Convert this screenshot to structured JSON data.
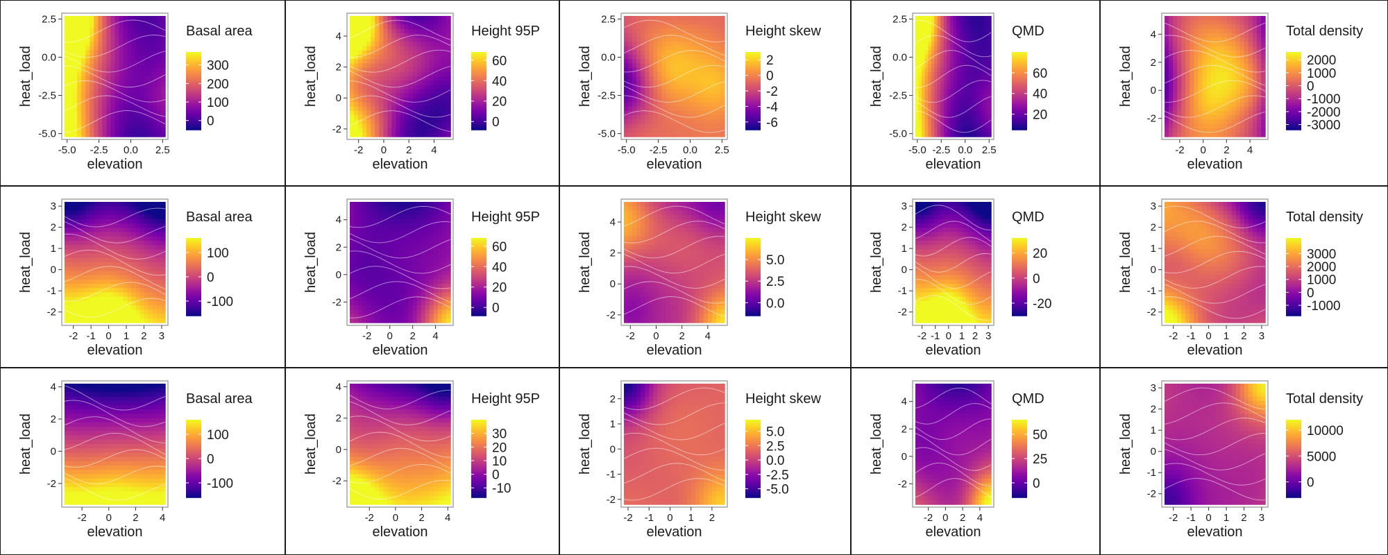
{
  "colors": {
    "colormap": "plasma",
    "contour_line": "#ffffff",
    "plot_frame": "#9e9e9e",
    "panel_border": "#1a1a1a"
  },
  "chart_data": [
    {
      "type": "heatmap",
      "row": 1,
      "col": 1,
      "legend_title": "Basal area",
      "xlabel": "elevation",
      "ylabel": "heat_load",
      "xlim": [
        -5.2,
        2.7
      ],
      "ylim": [
        -5.2,
        2.7
      ],
      "xticks": [
        "-5.0",
        "-2.5",
        "0.0",
        "2.5"
      ],
      "xtick_values": [
        -5,
        -2.5,
        0,
        2.5
      ],
      "yticks": [
        "-5.0",
        "-2.5",
        "0.0",
        "2.5"
      ],
      "ytick_values": [
        -5,
        -2.5,
        0,
        2.5
      ],
      "legend_ticks": [
        "300",
        "200",
        "100",
        "0"
      ],
      "legend_tick_values": [
        300,
        200,
        100,
        0
      ],
      "value_range": [
        -50,
        370
      ],
      "surface": {
        "center": 0.3,
        "gx": -0.6,
        "gy": 0.05,
        "curv": 0.45,
        "wavy": 0.1,
        "hot": [
          [
            -1,
            1,
            0.6
          ],
          [
            1,
            -0.4,
            0.25
          ]
        ]
      }
    },
    {
      "type": "heatmap",
      "row": 1,
      "col": 2,
      "legend_title": "Height 95P",
      "xlabel": "elevation",
      "ylabel": "heat_load",
      "xlim": [
        -2.7,
        5.3
      ],
      "ylim": [
        -2.5,
        5.3
      ],
      "xticks": [
        "-2",
        "0",
        "2",
        "4"
      ],
      "xtick_values": [
        -2,
        0,
        2,
        4
      ],
      "yticks": [
        "-2",
        "0",
        "2",
        "4"
      ],
      "ytick_values": [
        -2,
        0,
        2,
        4
      ],
      "legend_ticks": [
        "60",
        "40",
        "20",
        "0"
      ],
      "legend_tick_values": [
        60,
        40,
        20,
        0
      ],
      "value_range": [
        -8,
        68
      ],
      "surface": {
        "center": 0.28,
        "gx": -0.35,
        "gy": 0.05,
        "curv": 0.35,
        "wavy": 0.35,
        "hot": [
          [
            -1,
            1,
            0.55
          ],
          [
            -0.6,
            -0.7,
            0.2
          ]
        ]
      }
    },
    {
      "type": "heatmap",
      "row": 1,
      "col": 3,
      "legend_title": "Height skew",
      "xlabel": "elevation",
      "ylabel": "heat_load",
      "xlim": [
        -5.2,
        2.7
      ],
      "ylim": [
        -5.2,
        2.7
      ],
      "xticks": [
        "-5.0",
        "-2.5",
        "0.0",
        "2.5"
      ],
      "xtick_values": [
        -5,
        -2.5,
        0,
        2.5
      ],
      "yticks": [
        "-5.0",
        "-2.5",
        "0.0",
        "2.5"
      ],
      "ytick_values": [
        -5,
        -2.5,
        0,
        2.5
      ],
      "legend_ticks": [
        "2",
        "0",
        "-2",
        "-4",
        "-6"
      ],
      "legend_tick_values": [
        2,
        0,
        -2,
        -4,
        -6
      ],
      "value_range": [
        -7,
        3
      ],
      "surface": {
        "center": 0.66,
        "gx": 0.05,
        "gy": 0,
        "curv": -0.1,
        "wavy": 0.12,
        "hot": [
          [
            0.95,
            -0.2,
            0.25
          ],
          [
            -0.2,
            0.1,
            0.15
          ],
          [
            -1,
            -0.1,
            -0.3
          ]
        ]
      }
    },
    {
      "type": "heatmap",
      "row": 1,
      "col": 4,
      "legend_title": "QMD",
      "xlabel": "elevation",
      "ylabel": "heat_load",
      "xlim": [
        -5.2,
        2.7
      ],
      "ylim": [
        -5.2,
        2.7
      ],
      "xticks": [
        "-5.0",
        "-2.5",
        "0.0",
        "2.5"
      ],
      "xtick_values": [
        -5,
        -2.5,
        0,
        2.5
      ],
      "yticks": [
        "-5.0",
        "-2.5",
        "0.0",
        "2.5"
      ],
      "ytick_values": [
        -5,
        -2.5,
        0,
        2.5
      ],
      "legend_ticks": [
        "60",
        "40",
        "20"
      ],
      "legend_tick_values": [
        60,
        40,
        20
      ],
      "value_range": [
        5,
        80
      ],
      "surface": {
        "center": 0.22,
        "gx": -0.55,
        "gy": 0.05,
        "curv": 0.4,
        "wavy": 0.1,
        "hot": [
          [
            -1,
            1,
            0.5
          ],
          [
            1,
            -0.5,
            0.3
          ]
        ]
      }
    },
    {
      "type": "heatmap",
      "row": 1,
      "col": 5,
      "legend_title": "Total density",
      "xlabel": "elevation",
      "ylabel": "heat_load",
      "xlim": [
        -3.3,
        5.3
      ],
      "ylim": [
        -3.3,
        5.3
      ],
      "xticks": [
        "-2",
        "0",
        "2",
        "4"
      ],
      "xtick_values": [
        -2,
        0,
        2,
        4
      ],
      "yticks": [
        "-2",
        "0",
        "2",
        "4"
      ],
      "ytick_values": [
        -2,
        0,
        2,
        4
      ],
      "legend_ticks": [
        "2000",
        "1000",
        "0",
        "-1000",
        "-2000",
        "-3000"
      ],
      "legend_tick_values": [
        2000,
        1000,
        0,
        -1000,
        -2000,
        -3000
      ],
      "value_range": [
        -3400,
        2600
      ],
      "surface": {
        "center": 0.7,
        "gx": 0,
        "gy": 0,
        "curv": -0.45,
        "wavy": 0.2,
        "hot": [
          [
            0.8,
            -0.2,
            0.25
          ],
          [
            -0.2,
            -0.4,
            0.2
          ]
        ]
      }
    },
    {
      "type": "heatmap",
      "row": 2,
      "col": 1,
      "legend_title": "Basal area",
      "xlabel": "elevation",
      "ylabel": "heat_load",
      "xlim": [
        -2.5,
        3.2
      ],
      "ylim": [
        -2.5,
        3.2
      ],
      "xticks": [
        "-2",
        "-1",
        "0",
        "1",
        "2",
        "3"
      ],
      "xtick_values": [
        -2,
        -1,
        0,
        1,
        2,
        3
      ],
      "yticks": [
        "-2",
        "-1",
        "0",
        "1",
        "2",
        "3"
      ],
      "ytick_values": [
        -2,
        -1,
        0,
        1,
        2,
        3
      ],
      "legend_ticks": [
        "100",
        "0",
        "-100"
      ],
      "legend_tick_values": [
        100,
        0,
        -100
      ],
      "value_range": [
        -160,
        160
      ],
      "surface": {
        "center": 0.55,
        "gx": -0.1,
        "gy": -0.4,
        "curv": 0.05,
        "wavy": 0.08,
        "hot": [
          [
            -0.1,
            -1,
            0.4
          ],
          [
            -1,
            1,
            -0.4
          ],
          [
            1,
            1,
            -0.25
          ]
        ]
      }
    },
    {
      "type": "heatmap",
      "row": 2,
      "col": 2,
      "legend_title": "Height 95P",
      "xlabel": "elevation",
      "ylabel": "heat_load",
      "xlim": [
        -3.5,
        5.3
      ],
      "ylim": [
        -3.5,
        5.3
      ],
      "xticks": [
        "-2",
        "0",
        "2",
        "4"
      ],
      "xtick_values": [
        -2,
        0,
        2,
        4
      ],
      "yticks": [
        "-2",
        "0",
        "2",
        "4"
      ],
      "ytick_values": [
        -2,
        0,
        2,
        4
      ],
      "legend_ticks": [
        "60",
        "40",
        "20",
        "0"
      ],
      "legend_tick_values": [
        60,
        40,
        20,
        0
      ],
      "value_range": [
        -8,
        68
      ],
      "surface": {
        "center": 0.15,
        "gx": 0.02,
        "gy": -0.08,
        "curv": 0.15,
        "wavy": 0.12,
        "hot": [
          [
            1,
            -1,
            0.55
          ]
        ]
      }
    },
    {
      "type": "heatmap",
      "row": 2,
      "col": 3,
      "legend_title": "Height skew",
      "xlabel": "elevation",
      "ylabel": "heat_load",
      "xlim": [
        -2.5,
        5.3
      ],
      "ylim": [
        -2.5,
        5.3
      ],
      "xticks": [
        "-2",
        "0",
        "2",
        "4"
      ],
      "xtick_values": [
        -2,
        0,
        2,
        4
      ],
      "yticks": [
        "-2",
        "0",
        "2",
        "4"
      ],
      "ytick_values": [
        -2,
        0,
        2,
        4
      ],
      "legend_ticks": [
        "5.0",
        "2.5",
        "0.0"
      ],
      "legend_tick_values": [
        5,
        2.5,
        0
      ],
      "value_range": [
        -1.5,
        7.5
      ],
      "surface": {
        "center": 0.45,
        "gx": 0,
        "gy": 0,
        "curv": 0.1,
        "wavy": 0.15,
        "hot": [
          [
            -1,
            0.6,
            0.25
          ],
          [
            1,
            -1,
            0.4
          ],
          [
            1,
            1,
            -0.3
          ],
          [
            -1,
            -1,
            -0.3
          ]
        ]
      }
    },
    {
      "type": "heatmap",
      "row": 2,
      "col": 4,
      "legend_title": "QMD",
      "xlabel": "elevation",
      "ylabel": "heat_load",
      "xlim": [
        -2.5,
        3.2
      ],
      "ylim": [
        -2.5,
        3.2
      ],
      "xticks": [
        "-2",
        "-1",
        "0",
        "1",
        "2",
        "3"
      ],
      "xtick_values": [
        -2,
        -1,
        0,
        1,
        2,
        3
      ],
      "yticks": [
        "-2",
        "-1",
        "0",
        "1",
        "2",
        "3"
      ],
      "ytick_values": [
        -2,
        -1,
        0,
        1,
        2,
        3
      ],
      "legend_ticks": [
        "20",
        "0",
        "-20"
      ],
      "legend_tick_values": [
        20,
        0,
        -20
      ],
      "value_range": [
        -30,
        32
      ],
      "surface": {
        "center": 0.55,
        "gx": -0.1,
        "gy": -0.4,
        "curv": 0.05,
        "wavy": 0.08,
        "hot": [
          [
            -0.1,
            -1,
            0.4
          ],
          [
            -1,
            1,
            -0.4
          ],
          [
            1,
            1,
            -0.25
          ]
        ]
      }
    },
    {
      "type": "heatmap",
      "row": 2,
      "col": 5,
      "legend_title": "Total density",
      "xlabel": "elevation",
      "ylabel": "heat_load",
      "xlim": [
        -2.5,
        3.2
      ],
      "ylim": [
        -2.5,
        3.2
      ],
      "xticks": [
        "-2",
        "-1",
        "0",
        "1",
        "2",
        "3"
      ],
      "xtick_values": [
        -2,
        -1,
        0,
        1,
        2,
        3
      ],
      "yticks": [
        "-2",
        "-1",
        "0",
        "1",
        "2",
        "3"
      ],
      "ytick_values": [
        -2,
        -1,
        0,
        1,
        2,
        3
      ],
      "legend_ticks": [
        "3000",
        "2000",
        "1000",
        "0",
        "-1000"
      ],
      "legend_tick_values": [
        3000,
        2000,
        1000,
        0,
        -1000
      ],
      "value_range": [
        -1800,
        4200
      ],
      "surface": {
        "center": 0.55,
        "gx": -0.1,
        "gy": 0,
        "curv": 0.05,
        "wavy": 0.2,
        "hot": [
          [
            1,
            1,
            -0.45
          ],
          [
            -1,
            -1,
            0.3
          ],
          [
            -0.3,
            0.6,
            0.1
          ]
        ]
      }
    },
    {
      "type": "heatmap",
      "row": 3,
      "col": 1,
      "legend_title": "Basal area",
      "xlabel": "elevation",
      "ylabel": "heat_load",
      "xlim": [
        -3.3,
        4.2
      ],
      "ylim": [
        -3.3,
        4.2
      ],
      "xticks": [
        "-2",
        "0",
        "2",
        "4"
      ],
      "xtick_values": [
        -2,
        0,
        2,
        4
      ],
      "yticks": [
        "-2",
        "0",
        "2",
        "4"
      ],
      "ytick_values": [
        -2,
        0,
        2,
        4
      ],
      "legend_ticks": [
        "100",
        "0",
        "-100"
      ],
      "legend_tick_values": [
        100,
        0,
        -100
      ],
      "value_range": [
        -160,
        160
      ],
      "surface": {
        "center": 0.5,
        "gx": 0,
        "gy": -0.55,
        "curv": 0.05,
        "wavy": 0.04,
        "hot": [
          [
            0,
            -1,
            0.1
          ]
        ]
      }
    },
    {
      "type": "heatmap",
      "row": 3,
      "col": 2,
      "legend_title": "Height 95P",
      "xlabel": "elevation",
      "ylabel": "heat_load",
      "xlim": [
        -3.5,
        4.2
      ],
      "ylim": [
        -3.5,
        4.2
      ],
      "xticks": [
        "-2",
        "0",
        "2",
        "4"
      ],
      "xtick_values": [
        -2,
        0,
        2,
        4
      ],
      "yticks": [
        "-2",
        "0",
        "2",
        "4"
      ],
      "ytick_values": [
        -2,
        0,
        2,
        4
      ],
      "legend_ticks": [
        "30",
        "20",
        "10",
        "0",
        "-10"
      ],
      "legend_tick_values": [
        30,
        20,
        10,
        0,
        -10
      ],
      "value_range": [
        -17,
        40
      ],
      "surface": {
        "center": 0.55,
        "gx": 0,
        "gy": -0.4,
        "curv": 0.1,
        "wavy": 0.1,
        "hot": [
          [
            -1,
            -1,
            0.3
          ],
          [
            1,
            1,
            -0.3
          ]
        ]
      }
    },
    {
      "type": "heatmap",
      "row": 3,
      "col": 3,
      "legend_title": "Height skew",
      "xlabel": "elevation",
      "ylabel": "heat_load",
      "xlim": [
        -2.2,
        2.6
      ],
      "ylim": [
        -2.2,
        2.6
      ],
      "xticks": [
        "-2",
        "-1",
        "0",
        "1",
        "2"
      ],
      "xtick_values": [
        -2,
        -1,
        0,
        1,
        2
      ],
      "yticks": [
        "-2",
        "-1",
        "0",
        "1",
        "2"
      ],
      "ytick_values": [
        -2,
        -1,
        0,
        1,
        2
      ],
      "legend_ticks": [
        "5.0",
        "2.5",
        "0.0",
        "-2.5",
        "-5.0"
      ],
      "legend_tick_values": [
        5,
        2.5,
        0,
        -2.5,
        -5
      ],
      "value_range": [
        -6.5,
        7
      ],
      "surface": {
        "center": 0.6,
        "gx": 0,
        "gy": 0,
        "curv": 0,
        "wavy": 0.05,
        "hot": [
          [
            -1,
            1,
            -0.6
          ],
          [
            1,
            -1,
            0.3
          ]
        ]
      }
    },
    {
      "type": "heatmap",
      "row": 3,
      "col": 4,
      "legend_title": "QMD",
      "xlabel": "elevation",
      "ylabel": "heat_load",
      "xlim": [
        -3.5,
        5.3
      ],
      "ylim": [
        -3.5,
        5.3
      ],
      "xticks": [
        "-2",
        "0",
        "2",
        "4"
      ],
      "xtick_values": [
        -2,
        0,
        2,
        4
      ],
      "yticks": [
        "-2",
        "0",
        "2",
        "4"
      ],
      "ytick_values": [
        -2,
        0,
        2,
        4
      ],
      "legend_ticks": [
        "50",
        "25",
        "0"
      ],
      "legend_tick_values": [
        50,
        25,
        0
      ],
      "value_range": [
        -15,
        65
      ],
      "surface": {
        "center": 0.25,
        "gx": 0,
        "gy": -0.15,
        "curv": 0.1,
        "wavy": 0.12,
        "hot": [
          [
            1,
            -1,
            0.55
          ]
        ]
      }
    },
    {
      "type": "heatmap",
      "row": 3,
      "col": 5,
      "legend_title": "Total density",
      "xlabel": "elevation",
      "ylabel": "heat_load",
      "xlim": [
        -2.5,
        3.2
      ],
      "ylim": [
        -2.5,
        3.2
      ],
      "xticks": [
        "-2",
        "-1",
        "0",
        "1",
        "2",
        "3"
      ],
      "xtick_values": [
        -2,
        -1,
        0,
        1,
        2,
        3
      ],
      "yticks": [
        "-2",
        "-1",
        "0",
        "1",
        "2",
        "3"
      ],
      "ytick_values": [
        -2,
        -1,
        0,
        1,
        2,
        3
      ],
      "legend_ticks": [
        "10000",
        "5000",
        "0"
      ],
      "legend_tick_values": [
        10000,
        5000,
        0
      ],
      "value_range": [
        -3000,
        12000
      ],
      "surface": {
        "center": 0.38,
        "gx": 0,
        "gy": 0,
        "curv": 0.05,
        "wavy": 0.05,
        "hot": [
          [
            1,
            1,
            0.55
          ],
          [
            -1,
            -1,
            -0.35
          ]
        ]
      }
    }
  ]
}
